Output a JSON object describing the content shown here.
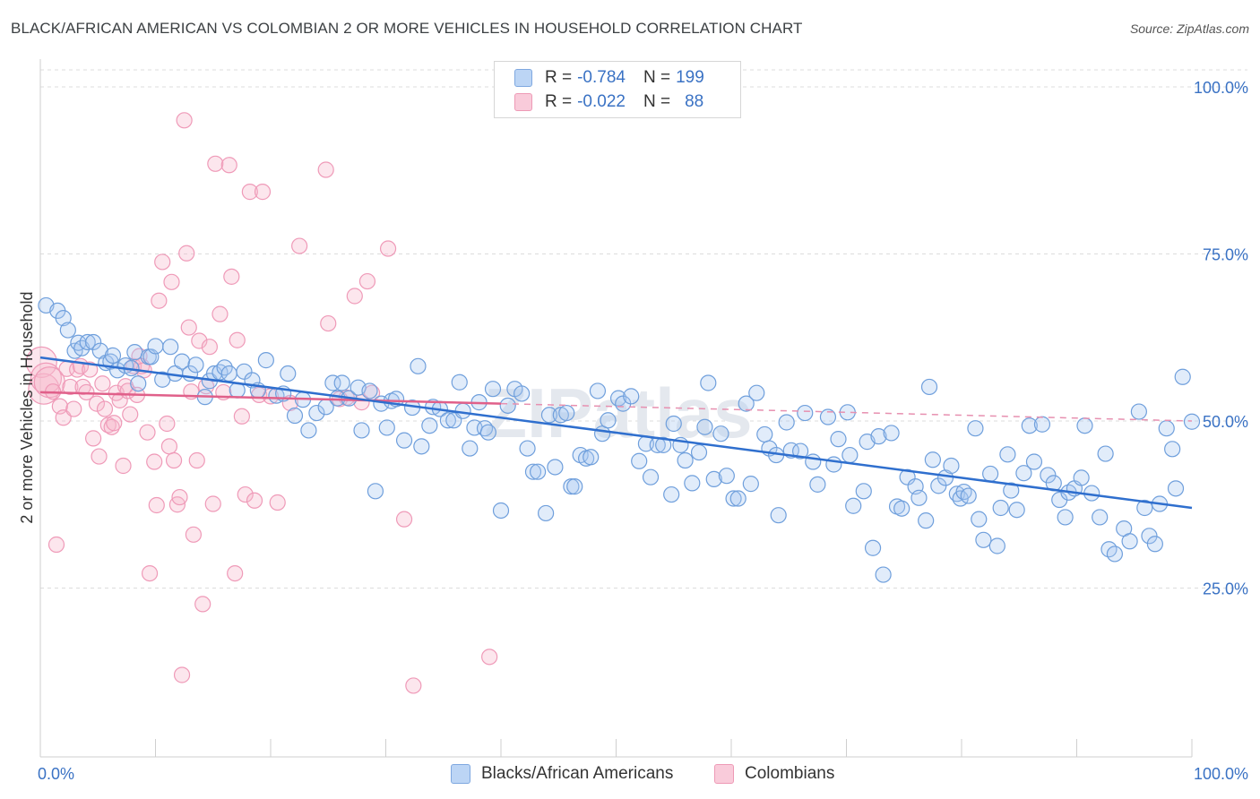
{
  "header": {
    "title": "BLACK/AFRICAN AMERICAN VS COLOMBIAN 2 OR MORE VEHICLES IN HOUSEHOLD CORRELATION CHART",
    "source": "Source: ZipAtlas.com"
  },
  "legend": {
    "rows": [
      {
        "r_label": "R =",
        "r_value": "-0.784",
        "n_label": "N =",
        "n_value": "199",
        "color": "#a8c8f0"
      },
      {
        "r_label": "R =",
        "r_value": "-0.022",
        "n_label": "N =",
        "n_value": "88",
        "color": "#f6b8cc"
      }
    ]
  },
  "bottom_legend": {
    "items": [
      {
        "label": "Blacks/African Americans",
        "color": "#a8c8f0"
      },
      {
        "label": "Colombians",
        "color": "#f6b8cc"
      }
    ]
  },
  "watermark": "ZIPatlas",
  "chart_data": {
    "type": "scatter",
    "title": "BLACK/AFRICAN AMERICAN VS COLOMBIAN 2 OR MORE VEHICLES IN HOUSEHOLD CORRELATION CHART",
    "xlabel": "",
    "ylabel": "2 or more Vehicles in Household",
    "xlim": [
      0,
      100
    ],
    "ylim": [
      0,
      102
    ],
    "x_tick_labels": [
      "0.0%",
      "100.0%"
    ],
    "y_ticks": [
      25,
      50,
      75,
      100
    ],
    "y_tick_labels": [
      "25.0%",
      "50.0%",
      "75.0%",
      "100.0%"
    ],
    "grid": true,
    "series": [
      {
        "name": "Blacks/African Americans",
        "color": "#6a9fe0",
        "trend": {
          "x": [
            0,
            100
          ],
          "y": [
            59.5,
            37.0
          ],
          "color": "#2f6fce",
          "style": "solid"
        },
        "points": [
          [
            0.5,
            67.3
          ],
          [
            1.5,
            66.5
          ],
          [
            2.0,
            65.4
          ],
          [
            2.4,
            63.6
          ],
          [
            3.0,
            60.5
          ],
          [
            3.3,
            61.7
          ],
          [
            3.6,
            60.9
          ],
          [
            4.1,
            61.8
          ],
          [
            4.6,
            61.8
          ],
          [
            5.2,
            60.5
          ],
          [
            5.7,
            58.7
          ],
          [
            6.1,
            58.9
          ],
          [
            6.3,
            59.8
          ],
          [
            6.7,
            57.6
          ],
          [
            7.4,
            58.3
          ],
          [
            7.9,
            57.9
          ],
          [
            8.2,
            60.3
          ],
          [
            8.5,
            55.6
          ],
          [
            9.4,
            59.6
          ],
          [
            9.6,
            59.6
          ],
          [
            10.0,
            61.2
          ],
          [
            10.6,
            56.2
          ],
          [
            11.3,
            61.1
          ],
          [
            11.7,
            57.1
          ],
          [
            12.3,
            58.9
          ],
          [
            13.0,
            57.1
          ],
          [
            13.5,
            58.4
          ],
          [
            14.3,
            53.6
          ],
          [
            14.7,
            56.0
          ],
          [
            15.1,
            57.1
          ],
          [
            15.6,
            57.3
          ],
          [
            16.0,
            58.0
          ],
          [
            16.4,
            57.1
          ],
          [
            17.1,
            54.6
          ],
          [
            17.7,
            57.4
          ],
          [
            18.4,
            56.1
          ],
          [
            18.9,
            54.6
          ],
          [
            19.6,
            59.1
          ],
          [
            20.5,
            53.8
          ],
          [
            21.1,
            54.1
          ],
          [
            21.5,
            57.1
          ],
          [
            22.1,
            50.8
          ],
          [
            22.8,
            53.2
          ],
          [
            23.3,
            48.6
          ],
          [
            24.0,
            51.2
          ],
          [
            24.8,
            52.1
          ],
          [
            25.4,
            55.7
          ],
          [
            25.8,
            53.4
          ],
          [
            26.2,
            55.7
          ],
          [
            26.8,
            53.4
          ],
          [
            27.6,
            55.0
          ],
          [
            27.9,
            48.6
          ],
          [
            28.6,
            54.5
          ],
          [
            29.1,
            39.5
          ],
          [
            29.6,
            52.6
          ],
          [
            30.1,
            49.0
          ],
          [
            30.5,
            53.0
          ],
          [
            30.9,
            53.3
          ],
          [
            31.6,
            47.1
          ],
          [
            32.3,
            52.0
          ],
          [
            32.8,
            58.2
          ],
          [
            33.1,
            46.2
          ],
          [
            33.8,
            49.3
          ],
          [
            34.1,
            52.1
          ],
          [
            34.7,
            51.8
          ],
          [
            35.4,
            50.1
          ],
          [
            35.9,
            50.1
          ],
          [
            36.4,
            55.8
          ],
          [
            36.7,
            51.5
          ],
          [
            37.3,
            45.9
          ],
          [
            37.7,
            49.0
          ],
          [
            38.1,
            52.8
          ],
          [
            38.6,
            48.9
          ],
          [
            38.9,
            48.3
          ],
          [
            39.3,
            54.8
          ],
          [
            40.0,
            36.6
          ],
          [
            40.6,
            52.3
          ],
          [
            41.2,
            54.8
          ],
          [
            41.8,
            54.1
          ],
          [
            42.3,
            45.9
          ],
          [
            42.8,
            42.4
          ],
          [
            43.2,
            42.4
          ],
          [
            43.9,
            36.2
          ],
          [
            44.2,
            50.9
          ],
          [
            44.7,
            43.1
          ],
          [
            45.2,
            50.9
          ],
          [
            45.7,
            51.2
          ],
          [
            46.1,
            40.2
          ],
          [
            46.4,
            40.2
          ],
          [
            46.9,
            44.9
          ],
          [
            47.4,
            44.4
          ],
          [
            47.8,
            44.6
          ],
          [
            48.4,
            54.5
          ],
          [
            48.8,
            48.1
          ],
          [
            49.3,
            50.1
          ],
          [
            50.2,
            53.4
          ],
          [
            50.6,
            52.6
          ],
          [
            51.3,
            53.7
          ],
          [
            52.0,
            44.0
          ],
          [
            52.6,
            46.6
          ],
          [
            53.0,
            41.6
          ],
          [
            53.6,
            46.4
          ],
          [
            54.1,
            46.4
          ],
          [
            54.8,
            39.0
          ],
          [
            55.0,
            49.6
          ],
          [
            55.6,
            46.4
          ],
          [
            56.0,
            44.1
          ],
          [
            56.6,
            40.7
          ],
          [
            57.2,
            45.3
          ],
          [
            57.7,
            49.1
          ],
          [
            58.0,
            55.7
          ],
          [
            58.5,
            41.3
          ],
          [
            59.1,
            48.1
          ],
          [
            59.6,
            41.8
          ],
          [
            60.2,
            38.4
          ],
          [
            60.6,
            38.4
          ],
          [
            61.3,
            52.6
          ],
          [
            61.7,
            40.6
          ],
          [
            62.2,
            54.2
          ],
          [
            62.9,
            48.0
          ],
          [
            63.3,
            45.9
          ],
          [
            63.9,
            44.9
          ],
          [
            64.1,
            35.9
          ],
          [
            64.8,
            49.8
          ],
          [
            65.2,
            45.6
          ],
          [
            66.0,
            45.5
          ],
          [
            66.4,
            51.2
          ],
          [
            67.1,
            43.9
          ],
          [
            67.5,
            40.5
          ],
          [
            68.4,
            50.6
          ],
          [
            68.9,
            43.5
          ],
          [
            69.3,
            47.3
          ],
          [
            70.1,
            51.3
          ],
          [
            70.3,
            44.9
          ],
          [
            70.6,
            37.3
          ],
          [
            71.5,
            39.5
          ],
          [
            71.8,
            46.9
          ],
          [
            72.3,
            31.0
          ],
          [
            72.8,
            47.7
          ],
          [
            73.2,
            27.0
          ],
          [
            73.9,
            48.2
          ],
          [
            74.4,
            37.2
          ],
          [
            74.8,
            36.9
          ],
          [
            75.3,
            41.6
          ],
          [
            76.0,
            40.2
          ],
          [
            76.3,
            38.5
          ],
          [
            76.9,
            35.1
          ],
          [
            77.2,
            55.1
          ],
          [
            77.5,
            44.2
          ],
          [
            78.0,
            40.3
          ],
          [
            78.6,
            41.5
          ],
          [
            79.1,
            43.3
          ],
          [
            79.6,
            39.1
          ],
          [
            79.9,
            38.4
          ],
          [
            80.2,
            39.4
          ],
          [
            80.6,
            38.8
          ],
          [
            81.2,
            48.9
          ],
          [
            81.5,
            35.3
          ],
          [
            81.9,
            32.2
          ],
          [
            82.5,
            42.1
          ],
          [
            83.1,
            31.3
          ],
          [
            83.4,
            37.0
          ],
          [
            84.0,
            45.0
          ],
          [
            84.3,
            39.6
          ],
          [
            84.8,
            36.7
          ],
          [
            85.4,
            42.2
          ],
          [
            85.9,
            49.3
          ],
          [
            86.3,
            43.9
          ],
          [
            87.0,
            49.5
          ],
          [
            87.5,
            41.9
          ],
          [
            88.0,
            40.7
          ],
          [
            88.5,
            38.2
          ],
          [
            89.0,
            35.6
          ],
          [
            89.3,
            39.3
          ],
          [
            89.8,
            39.9
          ],
          [
            90.4,
            41.5
          ],
          [
            90.7,
            49.3
          ],
          [
            91.3,
            39.2
          ],
          [
            92.0,
            35.6
          ],
          [
            92.5,
            45.1
          ],
          [
            92.8,
            30.8
          ],
          [
            93.3,
            30.1
          ],
          [
            94.1,
            33.9
          ],
          [
            94.6,
            32.0
          ],
          [
            95.4,
            51.4
          ],
          [
            95.9,
            37.0
          ],
          [
            96.3,
            32.8
          ],
          [
            96.8,
            31.6
          ],
          [
            97.2,
            37.6
          ],
          [
            97.8,
            48.9
          ],
          [
            98.3,
            45.8
          ],
          [
            98.6,
            39.9
          ],
          [
            99.2,
            56.6
          ],
          [
            100.0,
            49.9
          ]
        ]
      },
      {
        "name": "Colombians",
        "color": "#f090b0",
        "trend": {
          "x": [
            0,
            40
          ],
          "y": [
            54.3,
            52.6
          ],
          "color": "#e0608a",
          "style": "solid"
        },
        "trend_extension": {
          "x": [
            40,
            100
          ],
          "y": [
            52.6,
            50.0
          ],
          "color": "#e790b0",
          "style": "dashed"
        },
        "points": [
          [
            0.1,
            58.8
          ],
          [
            0.3,
            54.8
          ],
          [
            0.5,
            56.4
          ],
          [
            0.8,
            55.8
          ],
          [
            1.1,
            54.4
          ],
          [
            1.4,
            31.5
          ],
          [
            1.7,
            52.2
          ],
          [
            2.0,
            50.5
          ],
          [
            2.3,
            57.8
          ],
          [
            2.6,
            55.1
          ],
          [
            2.9,
            51.8
          ],
          [
            3.2,
            57.7
          ],
          [
            3.5,
            58.2
          ],
          [
            3.7,
            55.1
          ],
          [
            4.0,
            54.3
          ],
          [
            4.3,
            57.7
          ],
          [
            4.6,
            47.4
          ],
          [
            4.9,
            52.6
          ],
          [
            5.1,
            44.7
          ],
          [
            5.4,
            55.6
          ],
          [
            5.6,
            51.8
          ],
          [
            5.9,
            49.4
          ],
          [
            6.2,
            49.1
          ],
          [
            6.4,
            49.7
          ],
          [
            6.6,
            54.2
          ],
          [
            6.9,
            53.1
          ],
          [
            7.2,
            43.3
          ],
          [
            7.4,
            55.2
          ],
          [
            7.6,
            54.5
          ],
          [
            7.8,
            51.0
          ],
          [
            8.1,
            58.2
          ],
          [
            8.4,
            53.9
          ],
          [
            8.6,
            59.7
          ],
          [
            8.8,
            58.2
          ],
          [
            9.0,
            57.6
          ],
          [
            9.3,
            48.3
          ],
          [
            9.5,
            27.2
          ],
          [
            9.9,
            43.9
          ],
          [
            10.1,
            37.4
          ],
          [
            10.3,
            68.0
          ],
          [
            10.6,
            73.8
          ],
          [
            11.0,
            49.6
          ],
          [
            11.2,
            46.2
          ],
          [
            11.4,
            70.8
          ],
          [
            11.6,
            44.1
          ],
          [
            11.9,
            37.5
          ],
          [
            12.1,
            38.6
          ],
          [
            12.3,
            12.0
          ],
          [
            12.5,
            95.0
          ],
          [
            12.7,
            75.1
          ],
          [
            12.9,
            64.0
          ],
          [
            13.1,
            54.4
          ],
          [
            13.3,
            33.0
          ],
          [
            13.6,
            44.1
          ],
          [
            13.8,
            62.0
          ],
          [
            14.1,
            22.6
          ],
          [
            14.4,
            55.2
          ],
          [
            14.7,
            61.1
          ],
          [
            15.0,
            37.6
          ],
          [
            15.2,
            88.5
          ],
          [
            15.6,
            66.0
          ],
          [
            15.9,
            54.3
          ],
          [
            16.4,
            88.3
          ],
          [
            16.6,
            71.6
          ],
          [
            16.9,
            27.2
          ],
          [
            17.1,
            62.1
          ],
          [
            17.5,
            50.7
          ],
          [
            17.8,
            39.0
          ],
          [
            18.2,
            84.3
          ],
          [
            18.6,
            38.1
          ],
          [
            19.0,
            53.9
          ],
          [
            19.3,
            84.3
          ],
          [
            20.0,
            53.7
          ],
          [
            20.6,
            37.8
          ],
          [
            21.7,
            52.7
          ],
          [
            22.5,
            76.2
          ],
          [
            24.8,
            87.6
          ],
          [
            25.0,
            64.6
          ],
          [
            26.0,
            53.3
          ],
          [
            26.6,
            53.5
          ],
          [
            27.3,
            68.7
          ],
          [
            27.9,
            52.8
          ],
          [
            28.4,
            70.9
          ],
          [
            28.8,
            54.2
          ],
          [
            30.2,
            75.8
          ],
          [
            31.6,
            35.3
          ],
          [
            32.4,
            10.4
          ],
          [
            39.0,
            14.7
          ]
        ]
      }
    ]
  }
}
